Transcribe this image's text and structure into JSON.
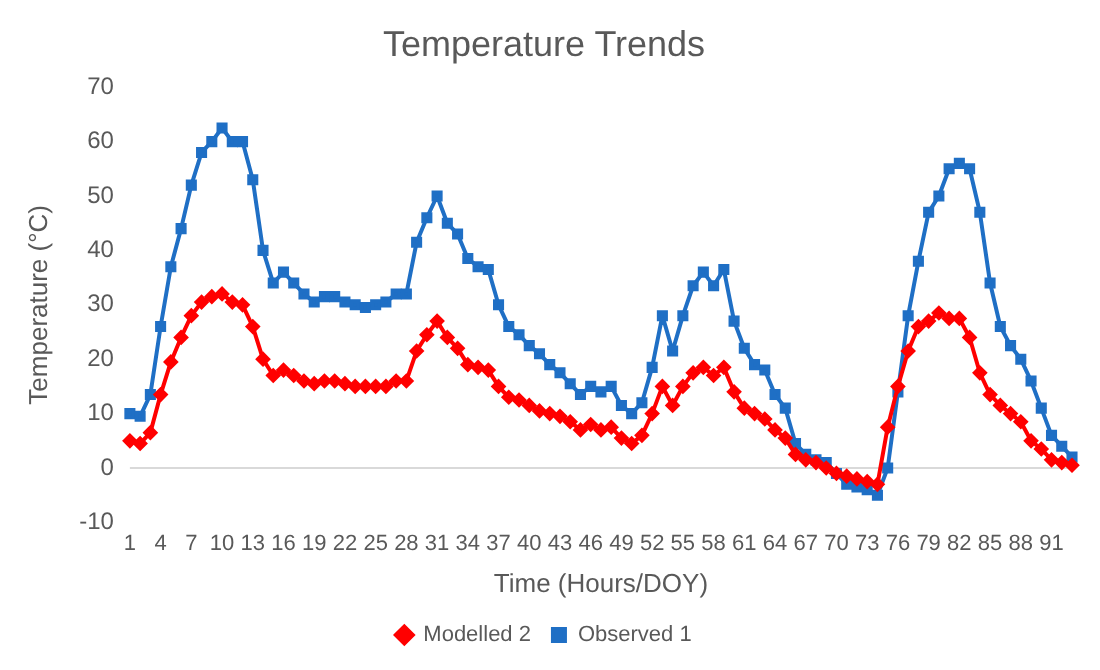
{
  "chart_data": {
    "type": "line",
    "title": "Temperature Trends",
    "xlabel": "Time (Hours/DOY)",
    "ylabel": "Temperature (°C)",
    "categories": [
      "1",
      null,
      null,
      "4",
      null,
      null,
      "7",
      null,
      null,
      "10",
      null,
      null,
      "13",
      null,
      null,
      "16",
      null,
      null,
      "19",
      null,
      null,
      "22",
      null,
      null,
      "25",
      null,
      null,
      "28",
      null,
      null,
      "31",
      null,
      null,
      "34",
      null,
      null,
      "37",
      null,
      null,
      "40",
      null,
      null,
      "43",
      null,
      null,
      "46",
      null,
      null,
      "49",
      null,
      null,
      "52",
      null,
      null,
      "55",
      null,
      null,
      "58",
      null,
      null,
      "61",
      null,
      null,
      "64",
      null,
      null,
      "67",
      null,
      null,
      "70",
      null,
      null,
      "73",
      null,
      null,
      "76",
      null,
      null,
      "79",
      null,
      null,
      "82",
      null,
      null,
      "85",
      null,
      null,
      "88",
      null,
      null,
      "91",
      null,
      null
    ],
    "series": [
      {
        "name": "Modelled 2",
        "color": "#ff0000",
        "marker": "diamond",
        "values": [
          5,
          4.5,
          6.5,
          13.5,
          19.5,
          24,
          28,
          30.5,
          31.5,
          32,
          30.5,
          30,
          26,
          20,
          17,
          18,
          17,
          16,
          15.5,
          16,
          16,
          15.5,
          15,
          15,
          15,
          15,
          16,
          16,
          21.5,
          24.5,
          27,
          24,
          22,
          19,
          18.5,
          18,
          15,
          13,
          12.5,
          11.5,
          10.5,
          10,
          9.5,
          8.5,
          7,
          8,
          7,
          7.5,
          5.5,
          4.5,
          6,
          10,
          15,
          11.5,
          15,
          17.5,
          18.5,
          17,
          18.5,
          14,
          11,
          10,
          9,
          7,
          5.5,
          2.5,
          1.5,
          1,
          0,
          -1,
          -1.5,
          -2,
          -2.5,
          -3,
          7.5,
          15,
          21.5,
          26,
          27,
          28.5,
          27.5,
          27.5,
          24,
          17.5,
          13.5,
          11.5,
          10,
          8.5,
          5,
          3.5,
          1.5,
          1,
          0.5
        ]
      },
      {
        "name": "Observed 1",
        "color": "#1f6fc5",
        "marker": "square",
        "values": [
          10,
          9.5,
          13.5,
          26,
          37,
          44,
          52,
          58,
          60,
          62.5,
          60,
          60,
          53,
          40,
          34,
          36,
          34,
          32,
          30.5,
          31.5,
          31.5,
          30.5,
          30,
          29.5,
          30,
          30.5,
          32,
          32,
          41.5,
          46,
          50,
          45,
          43,
          38.5,
          37,
          36.5,
          30,
          26,
          24.5,
          22.5,
          21,
          19,
          17.5,
          15.5,
          13.5,
          15,
          14,
          15,
          11.5,
          10,
          12,
          18.5,
          28,
          21.5,
          28,
          33.5,
          36,
          33.5,
          36.5,
          27,
          22,
          19,
          18,
          13.5,
          11,
          4.5,
          2.5,
          1.5,
          1,
          -1,
          -3,
          -3.5,
          -4,
          -5,
          0,
          14,
          28,
          38,
          47,
          50,
          55,
          56,
          55,
          47,
          34,
          26,
          22.5,
          20,
          16,
          11,
          6,
          4,
          2
        ]
      }
    ],
    "ylim": [
      -10,
      70
    ],
    "yticks": [
      -10,
      0,
      10,
      20,
      30,
      40,
      50,
      60,
      70
    ],
    "grid": false,
    "ref_lines": [
      {
        "axis": "y",
        "value": 0,
        "color": "#d9d9d9"
      }
    ],
    "legend": "bottom",
    "line_style": "solid"
  }
}
